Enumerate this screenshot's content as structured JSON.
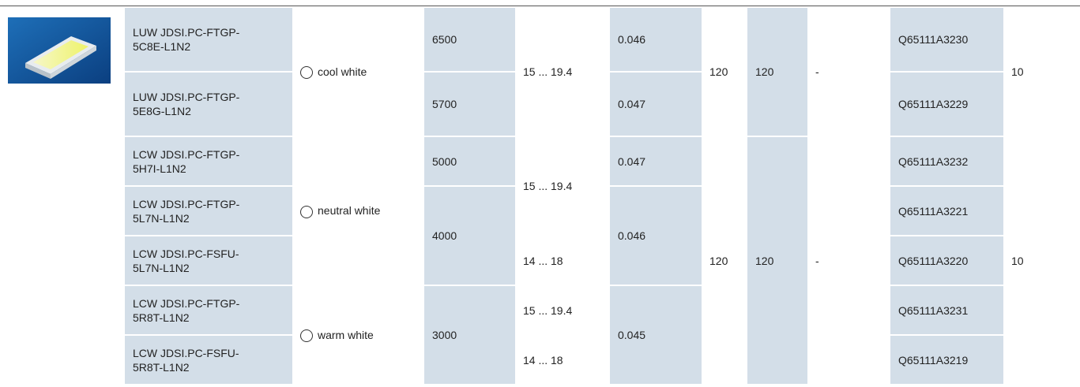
{
  "groups": [
    {
      "parts": [
        [
          "LUW JDSI.PC-FTGP-",
          "5C8E-L1N2"
        ],
        [
          "LUW JDSI.PC-FTGP-",
          "5E8G-L1N2"
        ]
      ],
      "colors": [
        "cool white"
      ],
      "temps": [
        6500,
        5700
      ],
      "ranges": [
        "15 ... 19.4"
      ],
      "values": [
        0.046,
        0.047
      ],
      "col6": 120,
      "col7": 120,
      "col8": "-",
      "orders": [
        "Q65111A3230",
        "Q65111A3229"
      ],
      "qty": 10
    },
    {
      "parts": [
        [
          "LCW JDSI.PC-FTGP-",
          "5H7I-L1N2"
        ],
        [
          "LCW JDSI.PC-FTGP-",
          "5L7N-L1N2"
        ],
        [
          "LCW JDSI.PC-FSFU-",
          "5L7N-L1N2"
        ],
        [
          "LCW JDSI.PC-FTGP-",
          "5R8T-L1N2"
        ],
        [
          "LCW JDSI.PC-FSFU-",
          "5R8T-L1N2"
        ]
      ],
      "colors": [
        "neutral white",
        "warm white"
      ],
      "temps": [
        5000,
        4000,
        3000
      ],
      "ranges": [
        "15 ... 19.4",
        "14 ... 18",
        "15 ... 19.4",
        "14 ... 18"
      ],
      "values": [
        0.047,
        0.046,
        0.045
      ],
      "col6": 120,
      "col7": 120,
      "col8": "-",
      "orders": [
        "Q65111A3232",
        "Q65111A3221",
        "Q65111A3220",
        "Q65111A3231",
        "Q65111A3219"
      ],
      "qty": 10
    }
  ]
}
